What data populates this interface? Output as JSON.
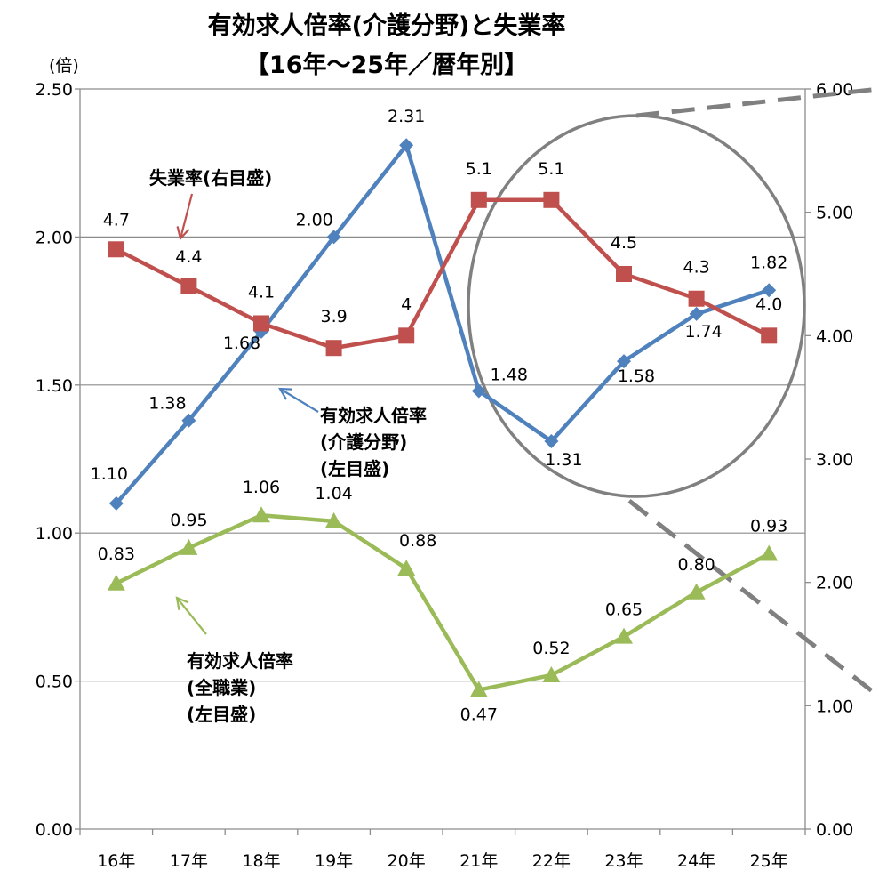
{
  "chart_data": {
    "type": "line",
    "title": "有効求人倍率(介護分野)と失業率",
    "subtitle": "【16年〜25年／暦年別】",
    "ylabel": "(倍)",
    "categories": [
      "16年",
      "17年",
      "18年",
      "19年",
      "20年",
      "21年",
      "22年",
      "23年",
      "24年",
      "25年"
    ],
    "y_left": {
      "ylim": [
        0,
        2.5
      ],
      "ticks": [
        "0.00",
        "0.50",
        "1.00",
        "1.50",
        "2.00",
        "2.50"
      ]
    },
    "y_right": {
      "ylim": [
        0,
        6
      ],
      "ticks": [
        "0.00",
        "1.00",
        "2.00",
        "3.00",
        "4.00",
        "5.00",
        "6.00"
      ]
    },
    "grid": true,
    "series": [
      {
        "name": "有効求人倍率(介護分野)(左目盛)",
        "axis": "left",
        "color": "#4f81bd",
        "marker": "diamond",
        "values": [
          1.1,
          1.38,
          1.68,
          2.0,
          2.31,
          1.48,
          1.31,
          1.58,
          1.74,
          1.82
        ],
        "labels": [
          "1.10",
          "1.38",
          "1.68",
          "2.00",
          "2.31",
          "1.48",
          "1.31",
          "1.58",
          "1.74",
          "1.82"
        ]
      },
      {
        "name": "失業率(右目盛)",
        "axis": "right",
        "color": "#c0504d",
        "marker": "square",
        "values": [
          4.7,
          4.4,
          4.1,
          3.9,
          4.0,
          5.1,
          5.1,
          4.5,
          4.3,
          4.0
        ],
        "labels": [
          "4.7",
          "4.4",
          "4.1",
          "3.9",
          "4",
          "5.1",
          "5.1",
          "4.5",
          "4.3",
          "4.0"
        ]
      },
      {
        "name": "有効求人倍率(全職業)(左目盛)",
        "axis": "left",
        "color": "#9bbb59",
        "marker": "triangle",
        "values": [
          0.83,
          0.95,
          1.06,
          1.04,
          0.88,
          0.47,
          0.52,
          0.65,
          0.8,
          0.93
        ],
        "labels": [
          "0.83",
          "0.95",
          "1.06",
          "1.04",
          "0.88",
          "0.47",
          "0.52",
          "0.65",
          "0.80",
          "0.93"
        ]
      }
    ],
    "annotations": [
      {
        "lines": [
          "失業率(右目盛)"
        ],
        "color": "#c0504d"
      },
      {
        "lines": [
          "有効求人倍率",
          "(介護分野)",
          "(左目盛)"
        ],
        "color": "#4f81bd"
      },
      {
        "lines": [
          "有効求人倍率",
          "(全職業)",
          "(左目盛)"
        ],
        "color": "#9bbb59"
      }
    ]
  }
}
